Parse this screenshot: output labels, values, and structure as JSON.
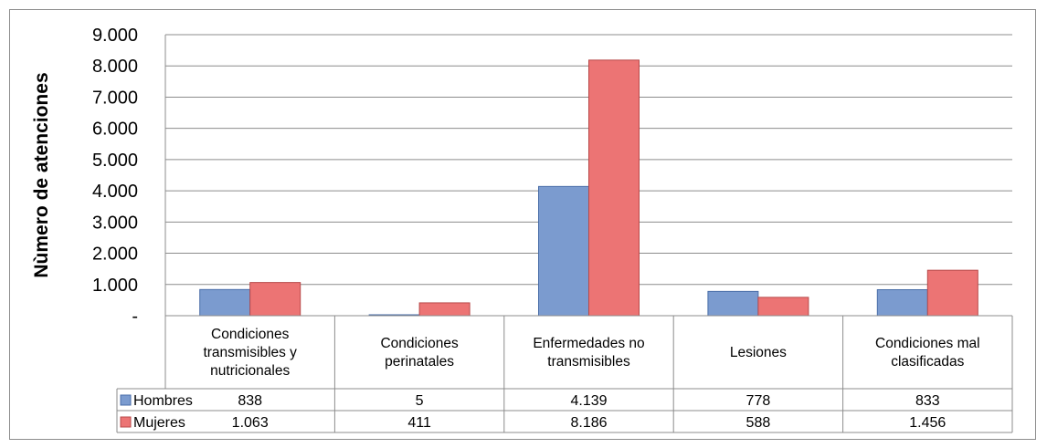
{
  "chart_data": {
    "type": "bar",
    "ylabel": "Nùmero de atenciones",
    "ylim": [
      0,
      9000
    ],
    "yticks": [
      {
        "value": 0,
        "label": "-"
      },
      {
        "value": 1000,
        "label": "1.000"
      },
      {
        "value": 2000,
        "label": "2.000"
      },
      {
        "value": 3000,
        "label": "3.000"
      },
      {
        "value": 4000,
        "label": "4.000"
      },
      {
        "value": 5000,
        "label": "5.000"
      },
      {
        "value": 6000,
        "label": "6.000"
      },
      {
        "value": 7000,
        "label": "7.000"
      },
      {
        "value": 8000,
        "label": "8.000"
      },
      {
        "value": 9000,
        "label": "9.000"
      }
    ],
    "grid": true,
    "legend": "data-table",
    "categories": [
      [
        "Condiciones",
        "transmisibles y",
        "nutricionales"
      ],
      [
        "Condiciones",
        "perinatales"
      ],
      [
        "Enfermedades no",
        "transmisibles"
      ],
      [
        "Lesiones"
      ],
      [
        "Condiciones mal",
        "clasificadas"
      ]
    ],
    "series": [
      {
        "name": "Hombres",
        "color": "#7b9bcf",
        "values": [
          838,
          5,
          4139,
          778,
          833
        ],
        "labels": [
          "838",
          "5",
          "4.139",
          "778",
          "833"
        ]
      },
      {
        "name": "Mujeres",
        "color": "#ec7474",
        "values": [
          1063,
          411,
          8186,
          588,
          1456
        ],
        "labels": [
          "1.063",
          "411",
          "8.186",
          "588",
          "1.456"
        ]
      }
    ]
  }
}
